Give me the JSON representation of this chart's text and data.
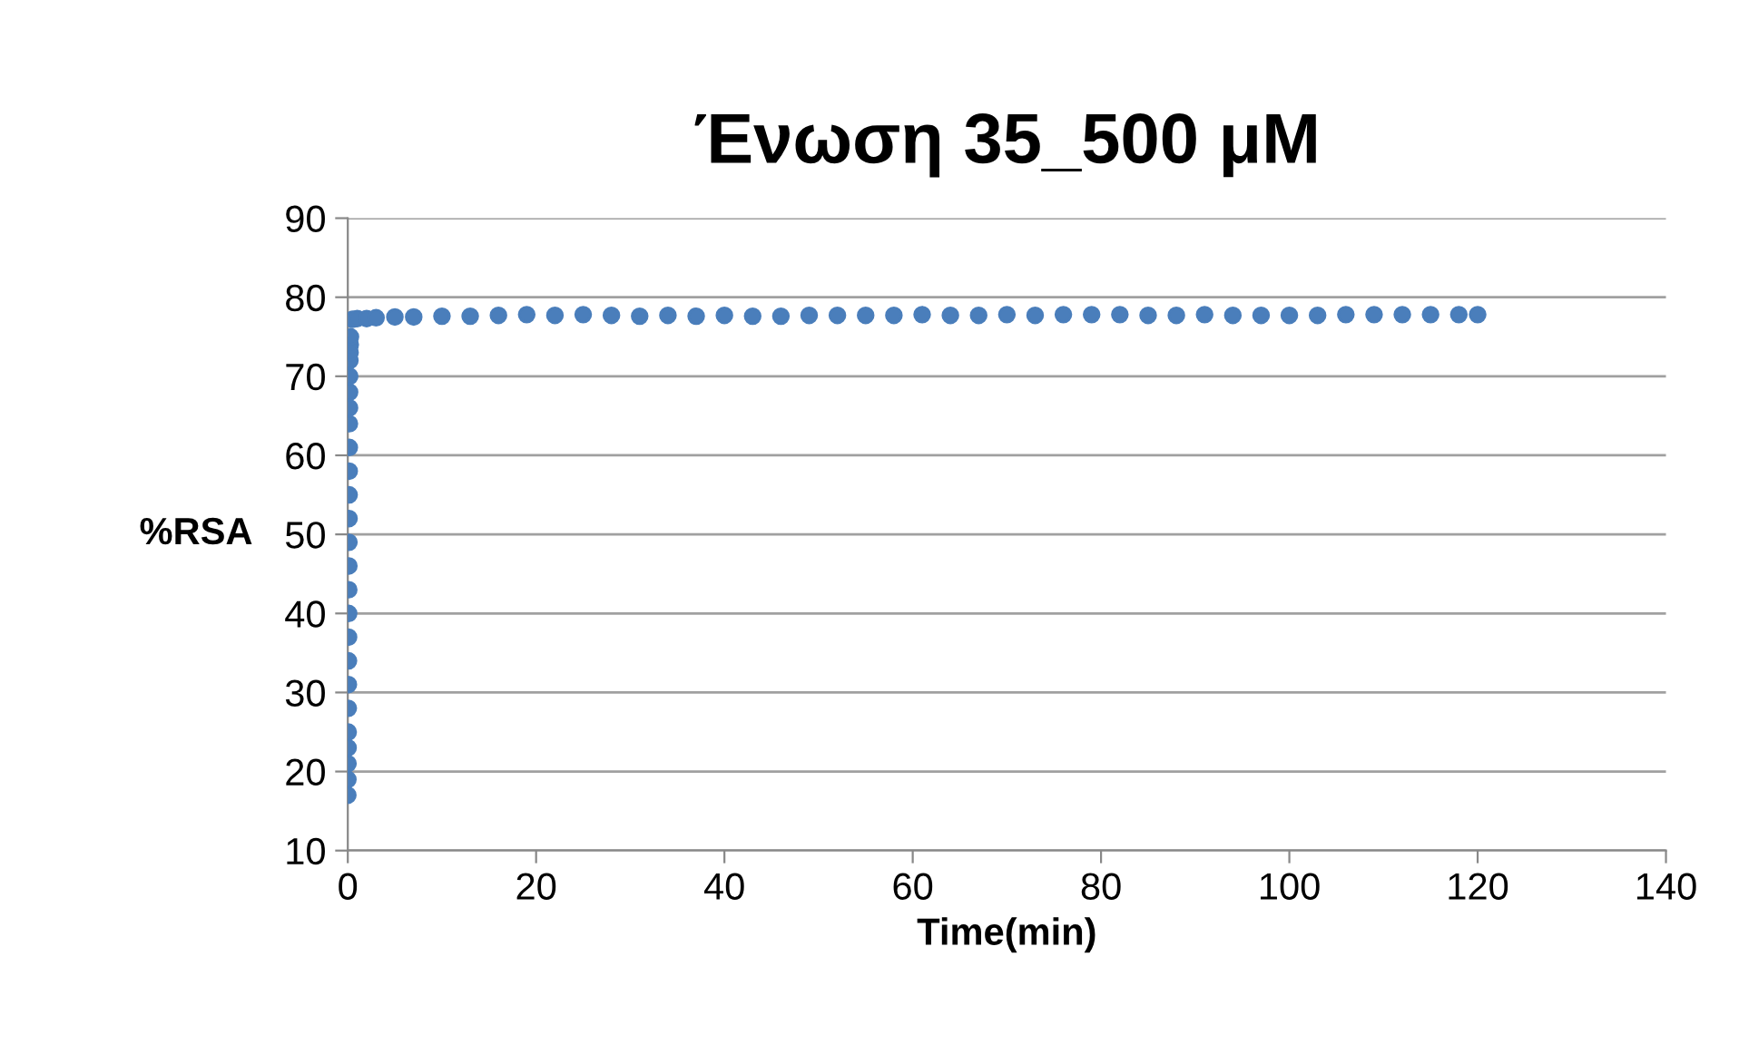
{
  "chart_data": {
    "type": "scatter",
    "title": "Ένωση 35_500 μM",
    "xlabel": "Time(min)",
    "ylabel": "%RSA",
    "x": [
      0,
      0.01,
      0.02,
      0.03,
      0.04,
      0.05,
      0.06,
      0.07,
      0.08,
      0.09,
      0.1,
      0.11,
      0.12,
      0.13,
      0.14,
      0.15,
      0.16,
      0.17,
      0.18,
      0.19,
      0.2,
      0.22,
      0.24,
      0.26,
      0.28,
      0.5,
      1,
      2,
      3,
      5,
      7,
      10,
      13,
      16,
      19,
      22,
      25,
      28,
      31,
      34,
      37,
      40,
      43,
      46,
      49,
      52,
      55,
      58,
      61,
      64,
      67,
      70,
      73,
      76,
      79,
      82,
      85,
      88,
      91,
      94,
      97,
      100,
      103,
      106,
      109,
      112,
      115,
      118,
      120
    ],
    "values": [
      17,
      19,
      21,
      23,
      25,
      28,
      31,
      34,
      37,
      40,
      43,
      46,
      49,
      52,
      55,
      58,
      61,
      64,
      66,
      68,
      70,
      72,
      73,
      74,
      75,
      77.2,
      77.3,
      77.3,
      77.4,
      77.5,
      77.5,
      77.6,
      77.6,
      77.7,
      77.8,
      77.7,
      77.8,
      77.7,
      77.6,
      77.7,
      77.6,
      77.7,
      77.6,
      77.6,
      77.7,
      77.7,
      77.7,
      77.7,
      77.8,
      77.7,
      77.7,
      77.8,
      77.7,
      77.8,
      77.8,
      77.8,
      77.7,
      77.7,
      77.8,
      77.7,
      77.7,
      77.7,
      77.7,
      77.8,
      77.8,
      77.8,
      77.8,
      77.8,
      77.8
    ],
    "color": "#4a7ebb",
    "marker": "circle",
    "xlim": [
      0,
      140
    ],
    "xticks": [
      0,
      20,
      40,
      60,
      80,
      100,
      120,
      140
    ],
    "ylim": [
      10,
      90
    ],
    "yticks": [
      10,
      20,
      30,
      40,
      50,
      60,
      70,
      80,
      90
    ],
    "grid": "y",
    "legend": false
  }
}
